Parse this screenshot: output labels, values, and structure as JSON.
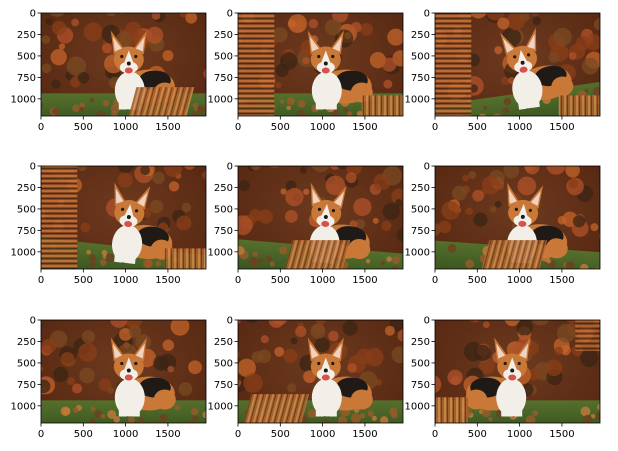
{
  "figure": {
    "description_free": true,
    "grid": {
      "rows": 3,
      "cols": 3
    },
    "x_axis": {
      "ticks": [
        0,
        500,
        1000,
        1500
      ],
      "tick_labels": [
        "0",
        "500",
        "1000",
        "1500"
      ],
      "range": [
        0,
        1950
      ]
    },
    "y_axis": {
      "ticks": [
        0,
        250,
        500,
        750,
        1000
      ],
      "tick_labels": [
        "0",
        "250",
        "500",
        "750",
        "1000"
      ],
      "range": [
        1200,
        0
      ]
    },
    "panels": [
      {
        "variant": "original",
        "dog_x": 0.52,
        "dog_flip": false,
        "smear": "bottom-right",
        "tilt": 0
      },
      {
        "variant": "shifted",
        "dog_x": 0.52,
        "dog_flip": false,
        "smear": "left",
        "tilt": 0
      },
      {
        "variant": "rotated",
        "dog_x": 0.52,
        "dog_flip": false,
        "smear": "left",
        "tilt": -8
      },
      {
        "variant": "rotated",
        "dog_x": 0.52,
        "dog_flip": false,
        "smear": "left",
        "tilt": 6
      },
      {
        "variant": "rotated",
        "dog_x": 0.52,
        "dog_flip": false,
        "smear": "bottom-right",
        "tilt": 5
      },
      {
        "variant": "rotated",
        "dog_x": 0.52,
        "dog_flip": false,
        "smear": "bottom-right",
        "tilt": 4
      },
      {
        "variant": "original",
        "dog_x": 0.52,
        "dog_flip": false,
        "smear": "none",
        "tilt": 0
      },
      {
        "variant": "shifted",
        "dog_x": 0.52,
        "dog_flip": false,
        "smear": "bottom-right",
        "tilt": 0
      },
      {
        "variant": "flipped",
        "dog_x": 0.48,
        "dog_flip": true,
        "smear": "bottom-left",
        "tilt": 0
      }
    ],
    "colors": {
      "background": "#ffffff",
      "foliage_dark": "#3b2414",
      "foliage_mid": "#8a3d18",
      "foliage_bright": "#c4642a",
      "grass": "#3f6a2a",
      "dog_orange": "#c97838",
      "dog_white": "#f2efe9",
      "dog_black": "#1f1a16",
      "smear": "#a8602d"
    }
  }
}
